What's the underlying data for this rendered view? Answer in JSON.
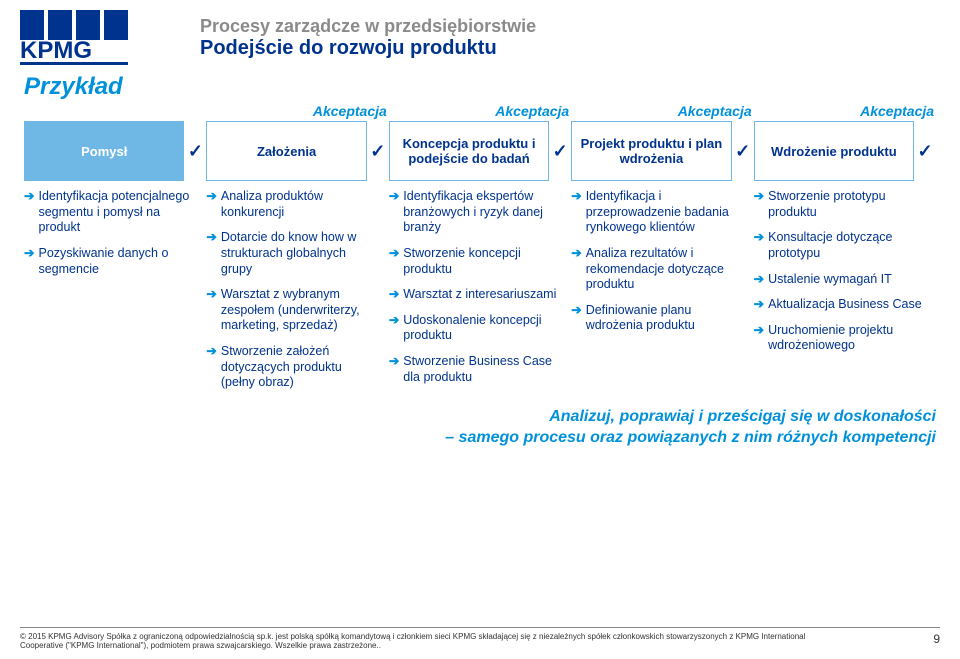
{
  "colors": {
    "kpmg_blue": "#00338d",
    "accent": "#0091da",
    "light_accent": "#6fb8e6",
    "grey_title": "#8a8a8a"
  },
  "header": {
    "title_small": "Procesy zarządcze w przedsiębiorstwie",
    "title_big": "Podejście do rozwoju produktu"
  },
  "example_label": "Przykład",
  "accept_label": "Akceptacja",
  "stages": [
    {
      "label": "Pomysł",
      "filled": true
    },
    {
      "label": "Założenia",
      "filled": false
    },
    {
      "label": "Koncepcja produktu i podejście do badań",
      "filled": false
    },
    {
      "label": "Projekt produktu i plan wdrożenia",
      "filled": false
    },
    {
      "label": "Wdrożenie produktu",
      "filled": false
    }
  ],
  "check_glyph": "✓",
  "arrow_glyph": "➔",
  "columns": [
    {
      "bullets": [
        "Identyfikacja potencjalnego segmentu i pomysł na produkt",
        "Pozyskiwanie danych o segmencie"
      ]
    },
    {
      "bullets": [
        "Analiza produktów konkurencji",
        "Dotarcie do know how w strukturach globalnych grupy",
        "Warsztat z wybranym zespołem (underwriterzy, marketing, sprzedaż)",
        "Stworzenie założeń dotyczących produktu (pełny obraz)"
      ]
    },
    {
      "bullets": [
        "Identyfikacja ekspertów branżowych i ryzyk danej branży",
        "Stworzenie koncepcji produktu",
        "Warsztat z interesariuszami",
        "Udoskonalenie koncepcji produktu",
        "Stworzenie Business Case dla produktu"
      ]
    },
    {
      "bullets": [
        "Identyfikacja i przeprowadzenie badania rynkowego klientów",
        "Analiza rezultatów i rekomendacje dotyczące produktu",
        "Definiowanie planu wdrożenia produktu"
      ]
    },
    {
      "bullets": [
        "Stworzenie prototypu produktu",
        "Konsultacje dotyczące prototypu",
        "Ustalenie wymagań IT",
        "Aktualizacja Business Case",
        "Uruchomienie projektu wdrożeniowego"
      ]
    }
  ],
  "callout_line1": "Analizuj, poprawiaj i prześcigaj się w doskonałości",
  "callout_line2": "– samego procesu oraz powiązanych z nim różnych kompetencji",
  "footer_text": "© 2015 KPMG Advisory Spółka z ograniczoną odpowiedzialnością sp.k. jest polską spółką komandytową i członkiem sieci KPMG składającej się z niezależnych spółek członkowskich stowarzyszonych z KPMG International Cooperative (\"KPMG International\"), podmiotem prawa szwajcarskiego. Wszelkie prawa zastrzeżone..",
  "page_number": "9"
}
